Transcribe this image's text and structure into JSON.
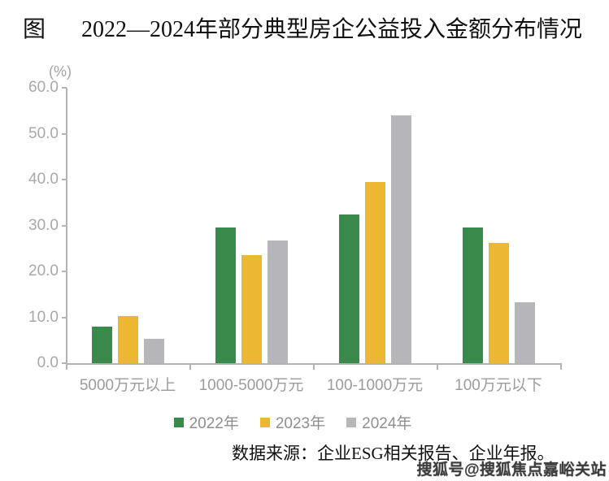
{
  "title": {
    "prefix": "图",
    "text": "2022—2024年部分典型房企公益投入金额分布情况"
  },
  "chart_data": {
    "type": "bar",
    "title": "2022—2024年部分典型房企公益投入金额分布情况",
    "unit_label": "(%)",
    "xlabel": "",
    "ylabel": "(%)",
    "categories": [
      "5000万元以上",
      "1000-5000万元",
      "100-1000万元",
      "100万元以下"
    ],
    "series": [
      {
        "name": "2022年",
        "color": "#3a8a4b",
        "values": [
          8.0,
          29.5,
          32.4,
          29.5
        ]
      },
      {
        "name": "2023年",
        "color": "#ecb732",
        "values": [
          10.3,
          23.6,
          39.4,
          26.2
        ]
      },
      {
        "name": "2024年",
        "color": "#b5b5ba",
        "values": [
          5.3,
          26.8,
          54.0,
          13.3
        ]
      }
    ],
    "ylim": [
      0,
      60
    ],
    "ytick_step": 10,
    "ytick_labels": [
      "0.0",
      "10.0",
      "20.0",
      "30.0",
      "40.0",
      "50.0",
      "60.0"
    ],
    "grid": false,
    "legend_position": "bottom"
  },
  "source_note": "数据来源：企业ESG相关报告、企业年报。",
  "watermark": "搜狐号@搜狐焦点嘉峪关站",
  "colors": {
    "axis": "#b3b3b3",
    "tick_text": "#a8a8a8",
    "category_text": "#9c9c9c",
    "legend_text": "#8f8f8f",
    "title_text": "#111111"
  }
}
